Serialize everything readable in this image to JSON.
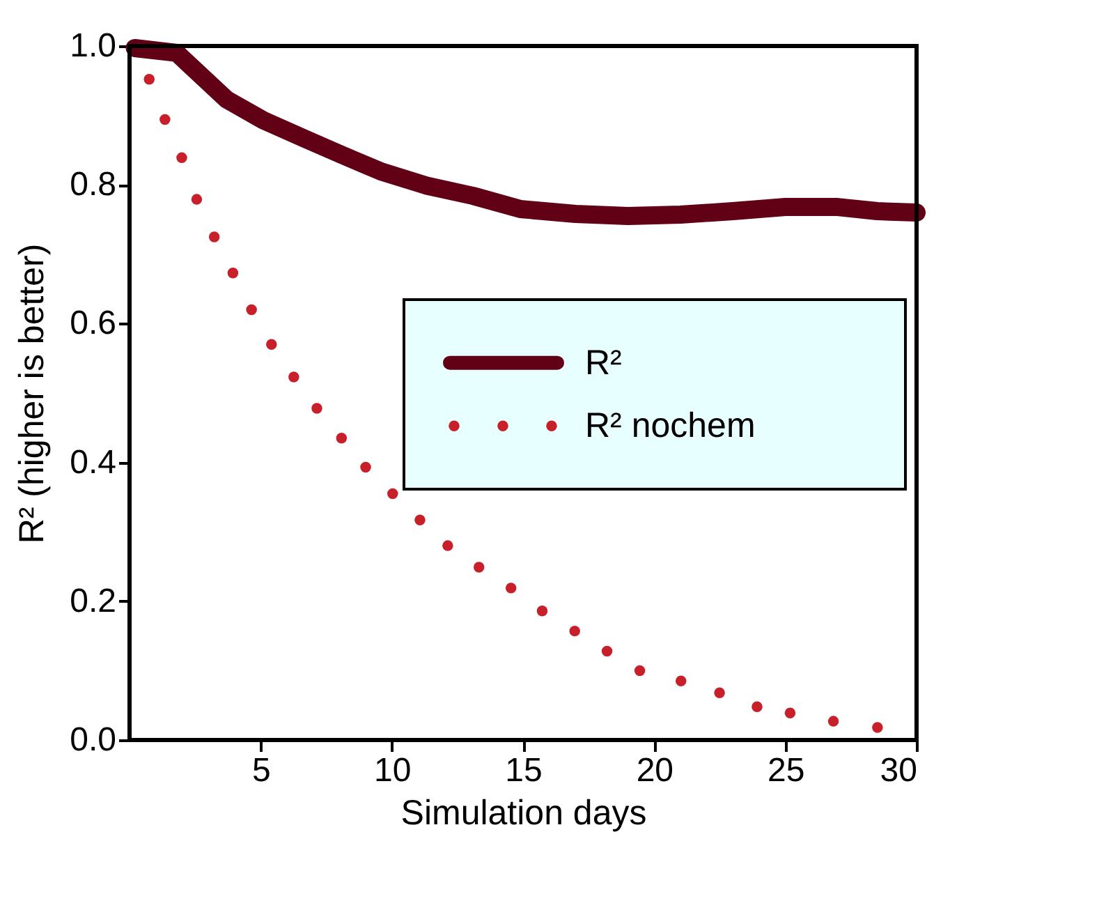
{
  "chart_data": {
    "type": "line",
    "xlabel": "Simulation days",
    "ylabel": "R² (higher is better)",
    "xlim": [
      0,
      30
    ],
    "xticks": [
      5,
      10,
      15,
      20,
      25,
      30
    ],
    "ylim": [
      0,
      1
    ],
    "yticks": [
      {
        "value": 0,
        "label": "0.0"
      },
      {
        "value": 0.2,
        "label": "0.2"
      },
      {
        "value": 0.4,
        "label": "0.4"
      },
      {
        "value": 0.6,
        "label": "0.6"
      },
      {
        "value": 0.8,
        "label": "0.8"
      },
      {
        "value": 1,
        "label": "1.0"
      }
    ],
    "grid": false,
    "legend": "right",
    "series": [
      {
        "name": "R²",
        "color": "#620015",
        "line_style": "solid",
        "x": [
          0.2,
          1.8,
          3.7,
          5.1,
          6.7,
          8.1,
          9.6,
          11.3,
          13.1,
          14.9,
          17,
          19,
          21,
          23,
          25,
          27,
          28.5,
          30
        ],
        "values": [
          0.997,
          0.99,
          0.923,
          0.893,
          0.866,
          0.843,
          0.819,
          0.799,
          0.784,
          0.765,
          0.758,
          0.755,
          0.757,
          0.762,
          0.768,
          0.768,
          0.762,
          0.76
        ]
      },
      {
        "name": "R² nochem",
        "type": "scatter",
        "color": "#c8202b",
        "marker": "circle",
        "x": [
          0.75,
          1.35,
          1.99,
          2.56,
          3.23,
          3.94,
          4.65,
          5.41,
          6.26,
          7.14,
          8.08,
          9.0,
          10.03,
          11.07,
          12.13,
          13.32,
          14.54,
          15.73,
          16.97,
          18.2,
          19.45,
          21.02,
          22.49,
          23.92,
          25.18,
          26.83,
          28.51
        ],
        "values": [
          0.952,
          0.894,
          0.839,
          0.779,
          0.725,
          0.673,
          0.62,
          0.57,
          0.523,
          0.478,
          0.435,
          0.393,
          0.355,
          0.317,
          0.28,
          0.249,
          0.219,
          0.186,
          0.157,
          0.128,
          0.1,
          0.085,
          0.068,
          0.048,
          0.039,
          0.027,
          0.018
        ]
      }
    ]
  }
}
